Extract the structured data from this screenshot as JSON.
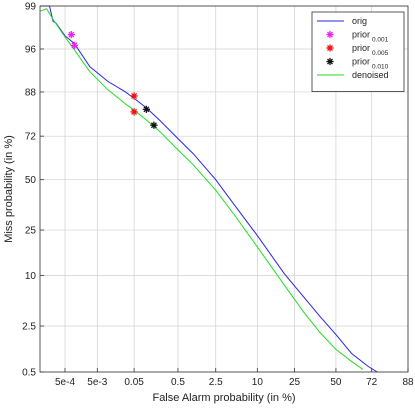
{
  "chart_data": {
    "type": "line",
    "title": "",
    "xlabel": "False Alarm probability (in %)",
    "ylabel": "Miss probability (in %)",
    "x_scale": "normal-deviate (DET)",
    "y_scale": "normal-deviate (DET)",
    "xlim": [
      7e-05,
      88
    ],
    "ylim": [
      0.5,
      99
    ],
    "x_ticks": [
      {
        "value": 0.0005,
        "label": "5e-4"
      },
      {
        "value": 0.005,
        "label": "5e-3"
      },
      {
        "value": 0.05,
        "label": "0.05"
      },
      {
        "value": 0.5,
        "label": "0.5"
      },
      {
        "value": 2.5,
        "label": "2.5"
      },
      {
        "value": 10,
        "label": "10"
      },
      {
        "value": 25,
        "label": "25"
      },
      {
        "value": 50,
        "label": "50"
      },
      {
        "value": 72,
        "label": "72"
      },
      {
        "value": 88,
        "label": "88"
      }
    ],
    "y_ticks": [
      {
        "value": 0.5,
        "label": "0.5"
      },
      {
        "value": 2.5,
        "label": "2.5"
      },
      {
        "value": 10,
        "label": "10"
      },
      {
        "value": 25,
        "label": "25"
      },
      {
        "value": 50,
        "label": "50"
      },
      {
        "value": 72,
        "label": "72"
      },
      {
        "value": 88,
        "label": "88"
      },
      {
        "value": 96,
        "label": "96"
      },
      {
        "value": 99,
        "label": "99"
      }
    ],
    "grid": true,
    "legend_position": "top-right",
    "series": [
      {
        "name": "orig",
        "kind": "line",
        "color": "#2626e6",
        "points": [
          [
            7e-05,
            99
          ],
          [
            0.00015,
            99
          ],
          [
            0.0002,
            98.3
          ],
          [
            0.00025,
            98.2
          ],
          [
            0.0005,
            97.3
          ],
          [
            0.001,
            96.6
          ],
          [
            0.003,
            93.5
          ],
          [
            0.01,
            90.6
          ],
          [
            0.03,
            88
          ],
          [
            0.05,
            86.2
          ],
          [
            0.1,
            83.2
          ],
          [
            0.2,
            78.8
          ],
          [
            0.5,
            70.9
          ],
          [
            1,
            63.6
          ],
          [
            2.5,
            50
          ],
          [
            5,
            36.3
          ],
          [
            10,
            22.7
          ],
          [
            20,
            10.4
          ],
          [
            30,
            5.8
          ],
          [
            40,
            3.3
          ],
          [
            50,
            1.9
          ],
          [
            60,
            1.0
          ],
          [
            70,
            0.62
          ],
          [
            75,
            0.5
          ]
        ]
      },
      {
        "name": "denoised",
        "kind": "line",
        "color": "#22dd22",
        "points": [
          [
            7e-05,
            98.8
          ],
          [
            0.00012,
            98.9
          ],
          [
            0.0002,
            98.4
          ],
          [
            0.0005,
            97.2
          ],
          [
            0.001,
            95.9
          ],
          [
            0.003,
            92.6
          ],
          [
            0.01,
            88.6
          ],
          [
            0.03,
            84.5
          ],
          [
            0.05,
            82.4
          ],
          [
            0.1,
            78.8
          ],
          [
            0.2,
            74.2
          ],
          [
            0.5,
            65.5
          ],
          [
            1,
            57.9
          ],
          [
            2.5,
            44.4
          ],
          [
            5,
            31.4
          ],
          [
            10,
            18.4
          ],
          [
            20,
            7.9
          ],
          [
            30,
            3.8
          ],
          [
            40,
            2.0
          ],
          [
            50,
            1.15
          ],
          [
            60,
            0.75
          ],
          [
            67,
            0.55
          ]
        ]
      },
      {
        "name": "prior",
        "subscript": "0.001",
        "kind": "marker",
        "color": "#ee22ee",
        "points": [
          [
            0.0008,
            97.4
          ],
          [
            0.001,
            96.4
          ]
        ]
      },
      {
        "name": "prior",
        "subscript": "0.005",
        "kind": "marker",
        "color": "#ee1111",
        "points": [
          [
            0.05,
            86.9
          ],
          [
            0.05,
            81.8
          ]
        ]
      },
      {
        "name": "prior",
        "subscript": "0.010",
        "kind": "marker",
        "color": "#111111",
        "points": [
          [
            0.1,
            82.7
          ],
          [
            0.15,
            76.7
          ]
        ]
      }
    ]
  },
  "colors": {
    "axis": "#333333",
    "grid": "#d0d0d0",
    "background": "#ffffff"
  }
}
